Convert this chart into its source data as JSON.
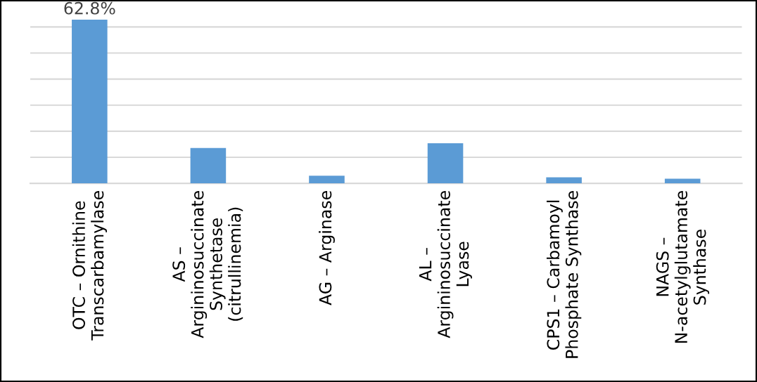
{
  "chart_data": {
    "type": "bar",
    "categories": [
      "OTC – Ornithine Transcarbamylase",
      "AS – Argininosuccinate Synthetase (citrullinemia)",
      "AG – Arginase",
      "AL – Argininosuccinate Lyase",
      "CPS1 – Carbamoyl Phosphate Synthase",
      "NAGS – N-acetylglutamate Synthase"
    ],
    "values": [
      62.8,
      13.6,
      2.9,
      15.4,
      2.3,
      1.8
    ],
    "value_labels": [
      "62.8%",
      null,
      null,
      null,
      null,
      null
    ],
    "color": "#5b9bd5",
    "yticks": [
      {
        "value": 0,
        "label": null
      },
      {
        "value": 10,
        "label": null
      },
      {
        "value": 20,
        "label": null
      },
      {
        "value": 30,
        "label": null
      },
      {
        "value": 40,
        "label": null
      },
      {
        "value": 50,
        "label": null
      },
      {
        "value": 60,
        "label": null
      }
    ],
    "tick_labels": "x",
    "grid": "y",
    "legend": false
  }
}
